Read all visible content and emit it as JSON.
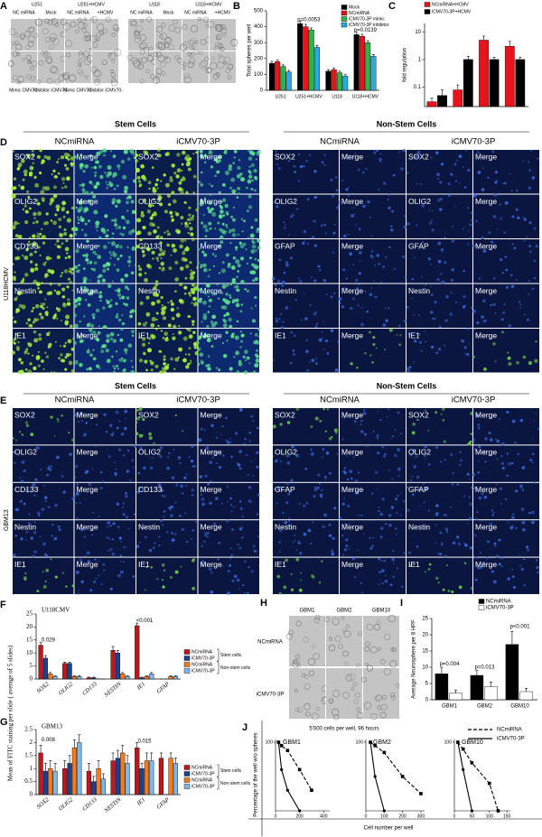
{
  "figure": {
    "A": {
      "label": "A",
      "groups": [
        {
          "name": "U251",
          "top": [
            "NC miRNA",
            "Mock"
          ],
          "bottom": [
            "Mimic CMV70-",
            "Inhibitor iCMV70-"
          ]
        },
        {
          "name": "U251+HCMV",
          "top": [
            "NC miRNA",
            "+HCMV"
          ],
          "bottom": [
            "Mimic CMV70-",
            "Inhibitor iCMV70-"
          ]
        },
        {
          "name": "U118",
          "top": [
            "NC miRNA",
            "Mock"
          ]
        },
        {
          "name": "U118+HCMV",
          "top": [
            "NC miRNA",
            "+HCMV"
          ]
        }
      ]
    },
    "D": {
      "label": "D",
      "side": "U118HCMV",
      "sections": [
        {
          "title": "Stem Cells",
          "conditions": [
            "NCmiRNA",
            "iCMV70-3P"
          ],
          "rows": [
            [
              "SOX2",
              "Merge",
              "SOX2",
              "Merge"
            ],
            [
              "OLIG2",
              "Merge",
              "OLIG2",
              "Merge"
            ],
            [
              "CD133",
              "Merge",
              "CD133",
              "Merge"
            ],
            [
              "Nestin",
              "Merge",
              "Nestin",
              "Merge"
            ],
            [
              "IE1",
              "Merge",
              "IE1",
              "Merge"
            ]
          ]
        },
        {
          "title": "Non-Stem Cells",
          "conditions": [
            "NCmiRNA",
            "iCMV70-3P"
          ],
          "rows": [
            [
              "SOX2",
              "Merge",
              "SOX2",
              "Merge"
            ],
            [
              "OLIG2",
              "Merge",
              "OLIG2",
              "Merge"
            ],
            [
              "GFAP",
              "Merge",
              "GFAP",
              "Merge"
            ],
            [
              "Nestin",
              "Merge",
              "Nestin",
              "Merge"
            ],
            [
              "IE1",
              "Merge",
              "IE1",
              "Merge"
            ]
          ]
        }
      ]
    },
    "E": {
      "label": "E",
      "side": "GBM13",
      "sections": [
        {
          "title": "Stem Cells",
          "conditions": [
            "NCmiRNA",
            "iCMV70-3P"
          ],
          "rows": [
            [
              "SOX2",
              "Merge",
              "SOX2",
              "Merge"
            ],
            [
              "OLIG2",
              "Merge",
              "OLIG2",
              "Merge"
            ],
            [
              "CD133",
              "Merge",
              "CD133",
              "Merge"
            ],
            [
              "Nestin",
              "Merge",
              "Nestin",
              "Merge"
            ],
            [
              "IE1",
              "Merge",
              "IE1",
              "Merge"
            ]
          ]
        },
        {
          "title": "Non-Stem Cells",
          "conditions": [
            "NCmiRNA",
            "iCMV70-3P"
          ],
          "rows": [
            [
              "SOX2",
              "Merge",
              "SOX2",
              "Merge"
            ],
            [
              "OLIG2",
              "Merge",
              "OLIG2",
              "Merge"
            ],
            [
              "GFAP",
              "Merge",
              "GFAP",
              "Merge"
            ],
            [
              "Nestin",
              "Merge",
              "Nestin",
              "Merge"
            ],
            [
              "IE1",
              "Merge",
              "IE1",
              "Merge"
            ]
          ]
        }
      ]
    },
    "H": {
      "label": "H",
      "columns": [
        "GBM1",
        "GBM2",
        "GBM10"
      ],
      "rows": [
        "NCmiRNA",
        "iCMV70-3P"
      ],
      "caption": "5'000 cells per well, 96 hours"
    }
  },
  "chart_data": [
    {
      "type": "bar",
      "label": "B",
      "ylabel": "Total spheres per well",
      "categories": [
        "U251",
        "U251+HCMV",
        "U118",
        "U118+HCMV"
      ],
      "series": [
        {
          "name": "Mock",
          "color": "#000000",
          "values": [
            170,
            420,
            120,
            350
          ],
          "errors": [
            12,
            15,
            10,
            15
          ]
        },
        {
          "name": "NCmiRNA",
          "color": "#e8141b",
          "values": [
            180,
            400,
            130,
            340
          ],
          "errors": [
            10,
            15,
            10,
            12
          ]
        },
        {
          "name": "iCMV70-3P mimic",
          "color": "#2db34a",
          "values": [
            150,
            380,
            110,
            300
          ],
          "errors": [
            10,
            12,
            10,
            12
          ]
        },
        {
          "name": "iCMV70-3P inhibitor",
          "color": "#29abe2",
          "values": [
            115,
            270,
            90,
            215
          ],
          "errors": [
            10,
            12,
            8,
            10
          ]
        }
      ],
      "ylim": [
        0,
        500
      ],
      "yticks": [
        0,
        100,
        200,
        300,
        400,
        500
      ],
      "annotations": [
        "p=0.0053",
        "p=0.0139"
      ]
    },
    {
      "type": "bar",
      "label": "C",
      "ylabel": "fold regulation",
      "log": true,
      "categories": [
        null,
        null,
        null,
        null
      ],
      "series": [
        {
          "name": "NCmiRNA+HCMV",
          "color": "#e8141b",
          "values": [
            0.03,
            0.08,
            5,
            3
          ],
          "errors": [
            0.01,
            0.04,
            2,
            1.5
          ]
        },
        {
          "name": "iCMV70-3P+HCMV",
          "color": "#000000",
          "values": [
            0.05,
            1,
            1,
            1
          ],
          "errors": [
            0.03,
            0.3,
            0.2,
            0.2
          ]
        }
      ],
      "ylim": [
        0.02,
        20
      ],
      "yticks": [
        0.1,
        1,
        10
      ]
    },
    {
      "type": "bar",
      "label": "F",
      "title": "U118CMV",
      "ylabel": "Mean of FITC staining per slide ( average of 5 slides)",
      "categories": [
        "SOX2",
        "OLIG2",
        "CD133",
        "NESTIN",
        "IE1",
        "GFAP"
      ],
      "series": [
        {
          "name": "NCmiRNA",
          "color": "#c0161d",
          "values": [
            13,
            6,
            0.5,
            11,
            20.5,
            0
          ],
          "errors": [
            1,
            0.5,
            0.2,
            1.5,
            1,
            0
          ]
        },
        {
          "name": "iCMV70-3P",
          "color": "#1f3f8f",
          "values": [
            8,
            6,
            0.5,
            10,
            0.5,
            0
          ],
          "errors": [
            1,
            0.5,
            0.2,
            1,
            0.2,
            0
          ]
        },
        {
          "name": "NCmiRNA",
          "color": "#f07d22",
          "values": [
            2,
            1,
            0,
            2,
            1,
            1
          ],
          "errors": [
            0.5,
            0.3,
            0,
            0.5,
            0.3,
            0.3
          ]
        },
        {
          "name": "iCMV70-3P",
          "color": "#7fb6e6",
          "values": [
            1,
            1,
            0,
            1,
            2,
            1
          ],
          "errors": [
            0.3,
            0.3,
            0,
            0.3,
            0.5,
            0.3
          ]
        }
      ],
      "legend_groups": [
        "Stem cells",
        "Non-stem cells"
      ],
      "ylim": [
        0,
        25
      ],
      "yticks": [
        0,
        5,
        10,
        15,
        20,
        25
      ],
      "annotations": [
        "0.029",
        "<0.001"
      ]
    },
    {
      "type": "bar",
      "label": "G",
      "title": "GBM13",
      "categories": [
        "SOX2",
        "OLIG2",
        "CD133",
        "NESTIN",
        "IE1",
        "GFAP"
      ],
      "series": [
        {
          "name": "NCmiRNA",
          "color": "#c0161d",
          "values": [
            1.6,
            1.0,
            0.9,
            1.3,
            1.8,
            1.4
          ],
          "errors": [
            0.3,
            0.3,
            0.3,
            0.3,
            0.2,
            0.2
          ]
        },
        {
          "name": "iCMV70-3P",
          "color": "#1f3f8f",
          "values": [
            0.9,
            1.2,
            0.5,
            1.4,
            1.0,
            0
          ],
          "errors": [
            0.3,
            0.3,
            0.2,
            0.3,
            0.2,
            0
          ]
        },
        {
          "name": "NCmiRNA",
          "color": "#f07d22",
          "values": [
            1.0,
            1.8,
            1.0,
            1.6,
            1.3,
            1.4
          ],
          "errors": [
            0.3,
            0.3,
            0.3,
            0.3,
            0.3,
            0.2
          ]
        },
        {
          "name": "iCMV70-3P",
          "color": "#7fb6e6",
          "values": [
            0.9,
            2.0,
            0.6,
            1.2,
            1.3,
            1.2
          ],
          "errors": [
            0.3,
            0.3,
            0.2,
            0.3,
            0.3,
            0.2
          ]
        }
      ],
      "legend_groups": [
        "Stem cells",
        "Non-stem cells"
      ],
      "ylim": [
        0,
        2.5
      ],
      "yticks": [
        0,
        0.5,
        1,
        1.5,
        2,
        2.5
      ],
      "annotations": [
        "0.008",
        "0.015"
      ]
    },
    {
      "type": "bar",
      "label": "I",
      "ylabel": "Average Neurosphere per 8 HPF",
      "categories": [
        "GBM1",
        "GBM2",
        "GBM10"
      ],
      "series": [
        {
          "name": "NCmiRNA",
          "color": "#000000",
          "values": [
            8,
            7.5,
            17
          ],
          "errors": [
            2,
            1.5,
            4
          ]
        },
        {
          "name": "iCMV70-3P",
          "color": "#ffffff",
          "values": [
            2,
            4,
            2.5
          ],
          "errors": [
            1,
            1.5,
            1
          ]
        }
      ],
      "ylim": [
        0,
        25
      ],
      "yticks": [
        0,
        5,
        10,
        15,
        20,
        25
      ],
      "annotations": [
        "p=0.004",
        "p=0.013",
        "p<0.001"
      ]
    },
    {
      "type": "line",
      "label": "J",
      "ylabel": "Percentage of the well w/o spheres",
      "xlabel": "Cell number per well",
      "series": [
        {
          "name": "NCmiRNA",
          "color": "#000000",
          "dash": true
        },
        {
          "name": "iCMV70-3P",
          "color": "#000000",
          "dash": false
        }
      ],
      "ylim": [
        0,
        100
      ],
      "yticks": [
        100
      ],
      "subplots": [
        {
          "title": "GBM1",
          "xlim": [
            0,
            450
          ],
          "xticks": [
            0,
            200,
            400
          ],
          "x": [
            [
              25,
              50,
              100,
              200,
              300
            ],
            [
              25,
              50,
              100,
              200
            ]
          ],
          "values": [
            [
              100,
              95,
              88,
              60,
              30
            ],
            [
              100,
              60,
              30,
              0
            ]
          ]
        },
        {
          "title": "GBM2",
          "xlim": [
            0,
            320
          ],
          "xticks": [
            0,
            100,
            200,
            300
          ],
          "x": [
            [
              25,
              50,
              100,
              200,
              300
            ],
            [
              25,
              50,
              100
            ]
          ],
          "values": [
            [
              100,
              95,
              85,
              50,
              25
            ],
            [
              100,
              50,
              0
            ]
          ]
        },
        {
          "title": "GBM10",
          "xlim": [
            0,
            160
          ],
          "xticks": [
            0,
            50,
            100,
            150
          ],
          "x": [
            [
              10,
              25,
              50,
              100,
              125
            ],
            [
              10,
              25,
              50
            ]
          ],
          "values": [
            [
              100,
              90,
              70,
              40,
              0
            ],
            [
              100,
              60,
              0
            ]
          ]
        }
      ]
    }
  ]
}
